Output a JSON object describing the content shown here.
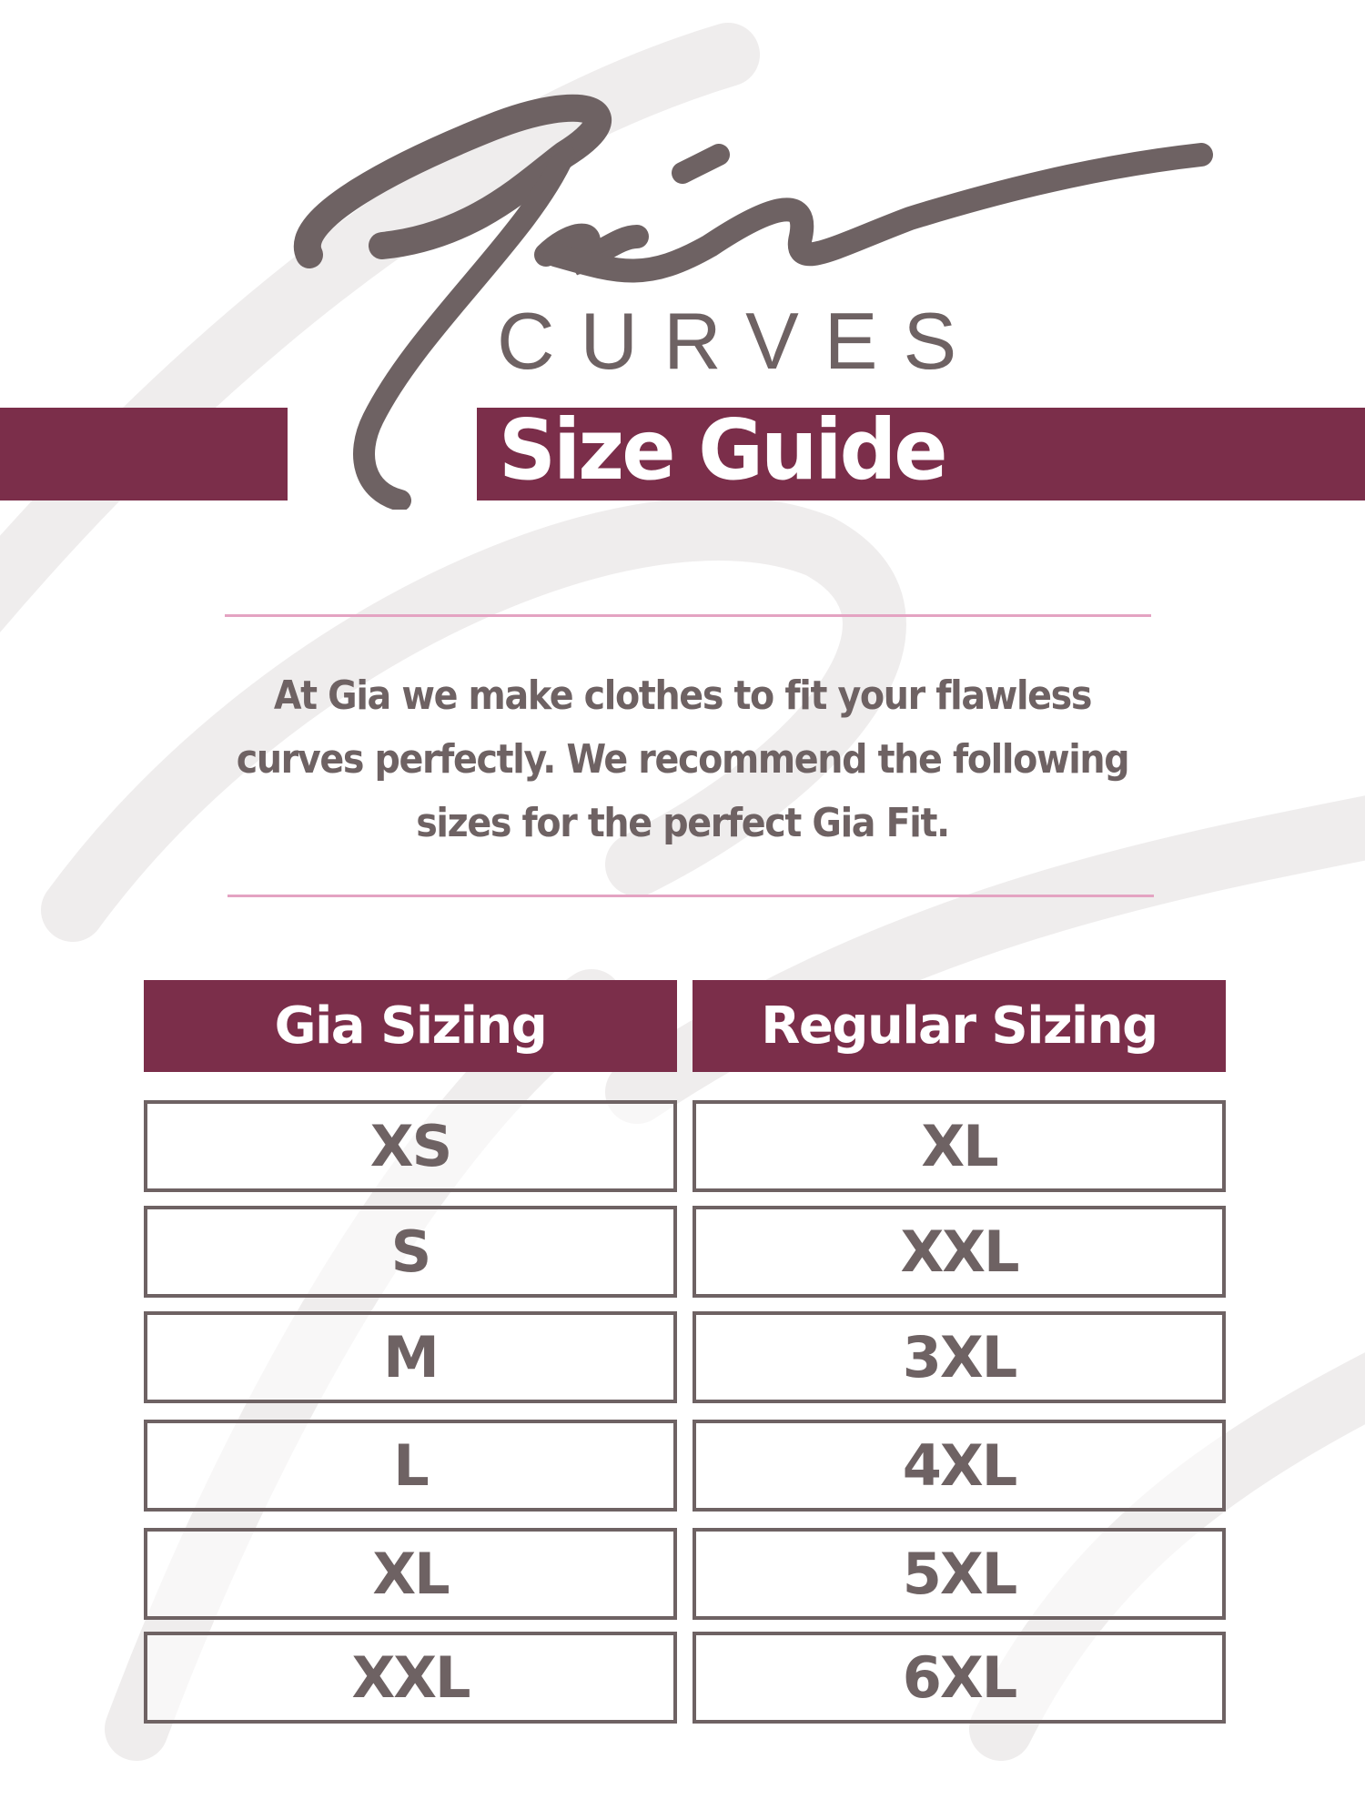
{
  "brand": {
    "logo_script": "Gia",
    "logo_sub": "CURVES",
    "watermark_text": "CURVES"
  },
  "title": "Size Guide",
  "intro": {
    "lines": [
      "At Gia we make clothes to fit your flawless",
      "curves perfectly.   We recommend  the following",
      "sizes for the perfect Gia Fit."
    ]
  },
  "table": {
    "headers": [
      "Gia Sizing",
      "Regular Sizing"
    ],
    "rows": [
      [
        "XS",
        "XL"
      ],
      [
        "S",
        "XXL"
      ],
      [
        "M",
        "3XL"
      ],
      [
        "L",
        "4XL"
      ],
      [
        "XL",
        "5XL"
      ],
      [
        "XXL",
        "6XL"
      ]
    ]
  },
  "colors": {
    "accent": "#7b2e4a",
    "text": "#6e6263",
    "divider": "#e4a3c2",
    "watermark": "#efeded"
  }
}
